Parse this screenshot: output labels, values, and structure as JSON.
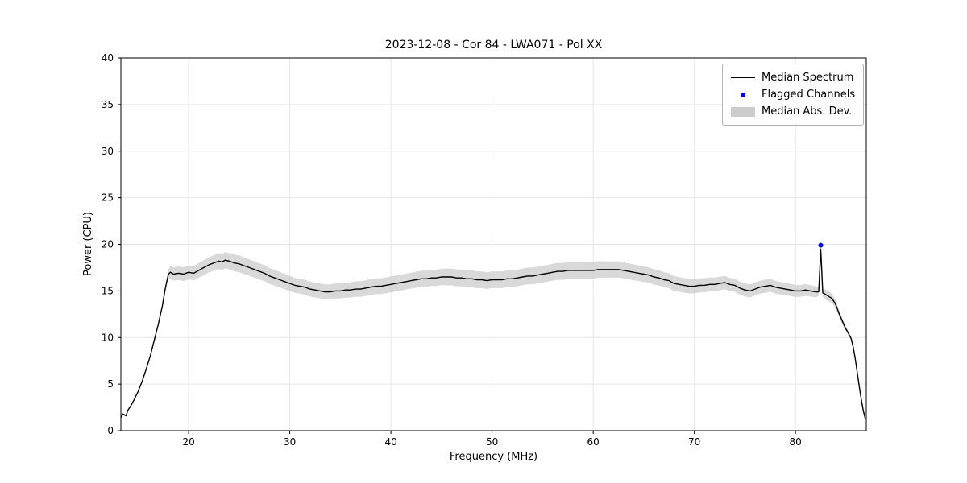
{
  "figure": {
    "title": "2023-12-08 - Cor 84 - LWA071 - Pol XX",
    "xlabel": "Frequency (MHz)",
    "ylabel": "Power (CPU)"
  },
  "legend": {
    "items": [
      {
        "label": "Median Spectrum",
        "type": "line",
        "color": "#000000"
      },
      {
        "label": "Flagged Channels",
        "type": "dot",
        "color": "#0000ff"
      },
      {
        "label": "Median Abs. Dev.",
        "type": "patch",
        "color": "#cccccc"
      }
    ]
  },
  "chart_data": {
    "type": "line",
    "title": "2023-12-08 - Cor 84 - LWA071 - Pol XX",
    "xlabel": "Frequency (MHz)",
    "ylabel": "Power (CPU)",
    "xlim": [
      13.3,
      87
    ],
    "ylim": [
      0,
      40
    ],
    "xticks": [
      20,
      30,
      40,
      50,
      60,
      70,
      80
    ],
    "yticks": [
      0,
      5,
      10,
      15,
      20,
      25,
      30,
      35,
      40
    ],
    "grid": true,
    "legend_position": "upper right",
    "series": [
      {
        "name": "Median Spectrum",
        "color": "#000000",
        "points": [
          [
            13.3,
            1.4
          ],
          [
            13.5,
            1.8
          ],
          [
            13.8,
            1.6
          ],
          [
            14.0,
            2.2
          ],
          [
            14.3,
            2.7
          ],
          [
            14.6,
            3.3
          ],
          [
            15.0,
            4.2
          ],
          [
            15.4,
            5.3
          ],
          [
            15.8,
            6.6
          ],
          [
            16.2,
            8.0
          ],
          [
            16.6,
            9.7
          ],
          [
            17.0,
            11.4
          ],
          [
            17.4,
            13.4
          ],
          [
            17.7,
            15.3
          ],
          [
            18.0,
            16.8
          ],
          [
            18.2,
            17.0
          ],
          [
            18.5,
            16.8
          ],
          [
            19.0,
            16.9
          ],
          [
            19.5,
            16.8
          ],
          [
            20.0,
            17.0
          ],
          [
            20.5,
            16.9
          ],
          [
            21.0,
            17.2
          ],
          [
            21.5,
            17.5
          ],
          [
            22.0,
            17.8
          ],
          [
            22.5,
            18.0
          ],
          [
            23.0,
            18.2
          ],
          [
            23.3,
            18.1
          ],
          [
            23.6,
            18.3
          ],
          [
            24.0,
            18.2
          ],
          [
            24.5,
            18.0
          ],
          [
            25.0,
            17.9
          ],
          [
            25.5,
            17.7
          ],
          [
            26.0,
            17.5
          ],
          [
            26.5,
            17.3
          ],
          [
            27.0,
            17.1
          ],
          [
            27.5,
            16.9
          ],
          [
            28.0,
            16.6
          ],
          [
            28.5,
            16.4
          ],
          [
            29.0,
            16.2
          ],
          [
            29.5,
            16.0
          ],
          [
            30.0,
            15.8
          ],
          [
            30.5,
            15.6
          ],
          [
            31.0,
            15.5
          ],
          [
            31.5,
            15.4
          ],
          [
            32.0,
            15.2
          ],
          [
            32.5,
            15.1
          ],
          [
            33.0,
            15.0
          ],
          [
            33.5,
            14.9
          ],
          [
            34.0,
            14.9
          ],
          [
            34.5,
            15.0
          ],
          [
            35.0,
            15.0
          ],
          [
            35.5,
            15.1
          ],
          [
            36.0,
            15.1
          ],
          [
            36.5,
            15.2
          ],
          [
            37.0,
            15.2
          ],
          [
            37.5,
            15.3
          ],
          [
            38.0,
            15.4
          ],
          [
            38.5,
            15.5
          ],
          [
            39.0,
            15.5
          ],
          [
            39.5,
            15.6
          ],
          [
            40.0,
            15.7
          ],
          [
            40.5,
            15.8
          ],
          [
            41.0,
            15.9
          ],
          [
            41.5,
            16.0
          ],
          [
            42.0,
            16.1
          ],
          [
            42.5,
            16.2
          ],
          [
            43.0,
            16.3
          ],
          [
            43.5,
            16.3
          ],
          [
            44.0,
            16.4
          ],
          [
            44.5,
            16.4
          ],
          [
            45.0,
            16.5
          ],
          [
            45.5,
            16.5
          ],
          [
            46.0,
            16.5
          ],
          [
            46.5,
            16.4
          ],
          [
            47.0,
            16.4
          ],
          [
            47.5,
            16.3
          ],
          [
            48.0,
            16.3
          ],
          [
            48.5,
            16.2
          ],
          [
            49.0,
            16.2
          ],
          [
            49.5,
            16.1
          ],
          [
            50.0,
            16.2
          ],
          [
            50.5,
            16.2
          ],
          [
            51.0,
            16.2
          ],
          [
            51.5,
            16.3
          ],
          [
            52.0,
            16.3
          ],
          [
            52.5,
            16.4
          ],
          [
            53.0,
            16.5
          ],
          [
            53.5,
            16.6
          ],
          [
            54.0,
            16.6
          ],
          [
            54.5,
            16.7
          ],
          [
            55.0,
            16.8
          ],
          [
            55.5,
            16.9
          ],
          [
            56.0,
            17.0
          ],
          [
            56.5,
            17.1
          ],
          [
            57.0,
            17.1
          ],
          [
            57.5,
            17.2
          ],
          [
            58.0,
            17.2
          ],
          [
            58.5,
            17.2
          ],
          [
            59.0,
            17.2
          ],
          [
            59.5,
            17.2
          ],
          [
            60.0,
            17.2
          ],
          [
            60.5,
            17.3
          ],
          [
            61.0,
            17.3
          ],
          [
            61.5,
            17.3
          ],
          [
            62.0,
            17.3
          ],
          [
            62.5,
            17.3
          ],
          [
            63.0,
            17.2
          ],
          [
            63.5,
            17.1
          ],
          [
            64.0,
            17.0
          ],
          [
            64.5,
            16.9
          ],
          [
            65.0,
            16.8
          ],
          [
            65.5,
            16.7
          ],
          [
            66.0,
            16.5
          ],
          [
            66.5,
            16.4
          ],
          [
            67.0,
            16.2
          ],
          [
            67.5,
            16.1
          ],
          [
            68.0,
            15.8
          ],
          [
            68.5,
            15.7
          ],
          [
            69.0,
            15.6
          ],
          [
            69.5,
            15.5
          ],
          [
            70.0,
            15.5
          ],
          [
            70.5,
            15.6
          ],
          [
            71.0,
            15.6
          ],
          [
            71.5,
            15.7
          ],
          [
            72.0,
            15.7
          ],
          [
            72.5,
            15.8
          ],
          [
            73.0,
            15.9
          ],
          [
            73.5,
            15.7
          ],
          [
            74.0,
            15.6
          ],
          [
            74.5,
            15.3
          ],
          [
            75.0,
            15.1
          ],
          [
            75.5,
            15.0
          ],
          [
            76.0,
            15.2
          ],
          [
            76.5,
            15.4
          ],
          [
            77.0,
            15.5
          ],
          [
            77.5,
            15.6
          ],
          [
            78.0,
            15.4
          ],
          [
            78.5,
            15.3
          ],
          [
            79.0,
            15.2
          ],
          [
            79.5,
            15.1
          ],
          [
            80.0,
            15.0
          ],
          [
            80.5,
            15.0
          ],
          [
            81.0,
            15.1
          ],
          [
            81.5,
            15.0
          ],
          [
            82.0,
            14.9
          ],
          [
            82.3,
            14.9
          ],
          [
            82.5,
            19.5
          ],
          [
            82.7,
            14.8
          ],
          [
            83.0,
            14.6
          ],
          [
            83.3,
            14.4
          ],
          [
            83.6,
            14.2
          ],
          [
            83.9,
            13.7
          ],
          [
            84.1,
            13.2
          ],
          [
            84.3,
            12.6
          ],
          [
            84.5,
            12.1
          ],
          [
            84.7,
            11.6
          ],
          [
            84.9,
            11.1
          ],
          [
            85.1,
            10.7
          ],
          [
            85.3,
            10.3
          ],
          [
            85.5,
            9.9
          ],
          [
            85.7,
            9.0
          ],
          [
            85.9,
            7.8
          ],
          [
            86.1,
            6.3
          ],
          [
            86.3,
            4.8
          ],
          [
            86.5,
            3.4
          ],
          [
            86.7,
            2.2
          ],
          [
            86.9,
            1.3
          ]
        ]
      }
    ],
    "band": {
      "name": "Median Abs. Dev.",
      "color": "#cccccc",
      "mad_points": [
        [
          13.3,
          0.08
        ],
        [
          17.0,
          0.1
        ],
        [
          17.8,
          0.3
        ],
        [
          18.2,
          0.7
        ],
        [
          20,
          0.75
        ],
        [
          23,
          0.85
        ],
        [
          25,
          0.9
        ],
        [
          28,
          0.85
        ],
        [
          31,
          0.8
        ],
        [
          34,
          0.8
        ],
        [
          38,
          0.85
        ],
        [
          42,
          0.85
        ],
        [
          46,
          0.9
        ],
        [
          50,
          0.9
        ],
        [
          55,
          0.9
        ],
        [
          60,
          0.9
        ],
        [
          64,
          0.85
        ],
        [
          68,
          0.8
        ],
        [
          71,
          0.75
        ],
        [
          74,
          0.7
        ],
        [
          77,
          0.7
        ],
        [
          80,
          0.65
        ],
        [
          82,
          0.6
        ],
        [
          82.5,
          0.3
        ],
        [
          83,
          0.55
        ],
        [
          84,
          0.45
        ],
        [
          84.8,
          0.3
        ],
        [
          85.5,
          0.2
        ],
        [
          86.2,
          0.12
        ],
        [
          86.9,
          0.08
        ]
      ]
    },
    "flagged": {
      "name": "Flagged Channels",
      "color": "#0000ff",
      "points": [
        [
          82.5,
          19.9
        ]
      ]
    }
  }
}
